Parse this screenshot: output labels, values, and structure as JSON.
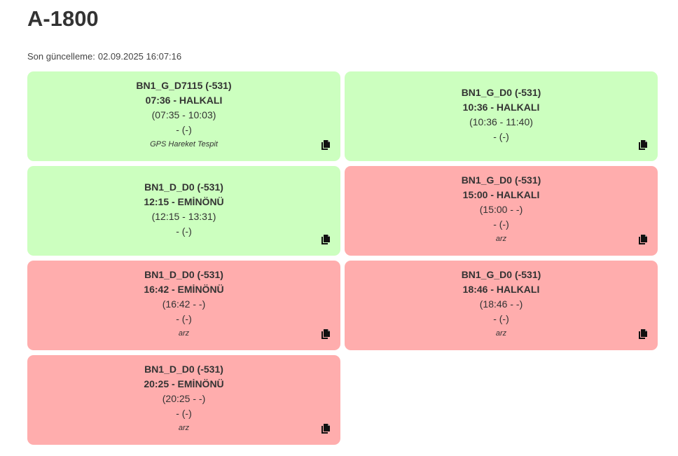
{
  "page": {
    "title": "A-1800",
    "updated_label": "Son güncelleme:",
    "updated_value": "02.09.2025 16:07:16"
  },
  "colors": {
    "ok": "#ccffbf",
    "bad": "#ffadad",
    "text": "#333333"
  },
  "cards": [
    {
      "status": "ok",
      "code": "BN1_G_D7115 (-531)",
      "departure": "07:36 - HALKALI",
      "window": "(07:35 - 10:03)",
      "extra": "- (-)",
      "note": "GPS Hareket Tespit",
      "icon": "copy-icon"
    },
    {
      "status": "ok",
      "code": "BN1_G_D0 (-531)",
      "departure": "10:36 - HALKALI",
      "window": "(10:36 - 11:40)",
      "extra": "- (-)",
      "note": "",
      "icon": "copy-icon"
    },
    {
      "status": "ok",
      "code": "BN1_D_D0 (-531)",
      "departure": "12:15 - EMİNÖNÜ",
      "window": "(12:15 - 13:31)",
      "extra": "- (-)",
      "note": "",
      "icon": "copy-icon"
    },
    {
      "status": "bad",
      "code": "BN1_G_D0 (-531)",
      "departure": "15:00 - HALKALI",
      "window": "(15:00 - -)",
      "extra": "- (-)",
      "note": "arz",
      "icon": "copy-icon"
    },
    {
      "status": "bad",
      "code": "BN1_D_D0 (-531)",
      "departure": "16:42 - EMİNÖNÜ",
      "window": "(16:42 - -)",
      "extra": "- (-)",
      "note": "arz",
      "icon": "copy-icon"
    },
    {
      "status": "bad",
      "code": "BN1_G_D0 (-531)",
      "departure": "18:46 - HALKALI",
      "window": "(18:46 - -)",
      "extra": "- (-)",
      "note": "arz",
      "icon": "copy-icon"
    },
    {
      "status": "bad",
      "code": "BN1_D_D0 (-531)",
      "departure": "20:25 - EMİNÖNÜ",
      "window": "(20:25 - -)",
      "extra": "- (-)",
      "note": "arz",
      "icon": "copy-icon"
    }
  ]
}
